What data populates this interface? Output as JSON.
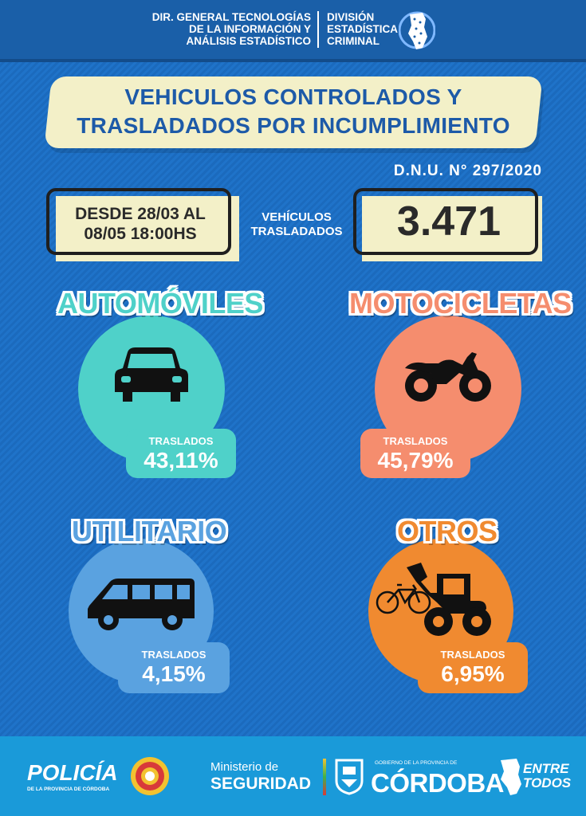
{
  "header": {
    "org_line1": "DIR. GENERAL TECNOLOGÍAS",
    "org_line2": "DE LA INFORMACIÓN Y",
    "org_line3": "ANÁLISIS ESTADÍSTICO",
    "div_line1": "DIVISIÓN",
    "div_line2": "ESTADÍSTICA",
    "div_line3": "CRIMINAL"
  },
  "title": {
    "line1": "VEHICULOS CONTROLADOS Y",
    "line2": "TRASLADADOS POR INCUMPLIMIENTO"
  },
  "dnu": "D.N.U. N° 297/2020",
  "period": {
    "line1": "DESDE 28/03 AL",
    "line2": "08/05 18:00HS"
  },
  "total": {
    "label_line1": "VEHÍCULOS",
    "label_line2": "TRASLADADOS",
    "value": "3.471"
  },
  "categories": [
    {
      "name": "AUTOMÓVILES",
      "icon": "car-icon",
      "label": "TRASLADOS",
      "value": "43,11%",
      "color": "#4fd1c9"
    },
    {
      "name": "MOTOCICLETAS",
      "icon": "motorcycle-icon",
      "label": "TRASLADOS",
      "value": "45,79%",
      "color": "#f58d6e"
    },
    {
      "name": "UTILITARIO",
      "icon": "van-icon",
      "label": "TRASLADOS",
      "value": "4,15%",
      "color": "#5aa2e0"
    },
    {
      "name": "OTROS",
      "icon": "tractor-bicycle-icon",
      "label": "TRASLADOS",
      "value": "6,95%",
      "color": "#f08a30"
    }
  ],
  "footer": {
    "policia": "POLICÍA",
    "policia_sub": "DE LA PROVINCIA DE CÓRDOBA",
    "ministerio_line1": "Ministerio de",
    "ministerio_line2": "SEGURIDAD",
    "gobierno": "GOBIERNO DE LA PROVINCIA DE",
    "cordoba": "CÓRDOBA",
    "entre_line1": "ENTRE",
    "entre_line2": "TODOS"
  },
  "colors": {
    "background": "#1e6fc4",
    "banner": "#f3f0c8",
    "title_text": "#1d5aa8",
    "footer": "#1a9ad9"
  }
}
